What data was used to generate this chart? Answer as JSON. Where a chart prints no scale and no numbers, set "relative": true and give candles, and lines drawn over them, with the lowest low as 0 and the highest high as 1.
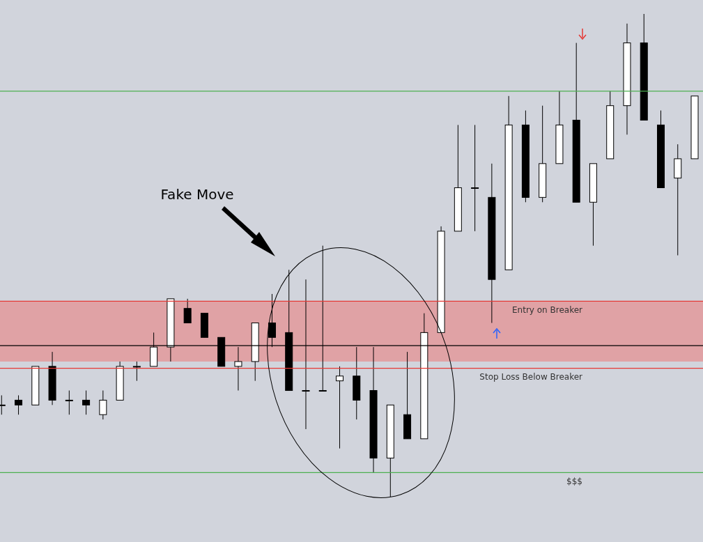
{
  "chart_data": {
    "type": "candlestick",
    "relative": true,
    "categories": [
      null,
      null,
      null,
      null,
      null,
      null,
      null,
      null,
      null,
      null,
      null,
      null,
      null,
      null,
      null,
      null,
      null,
      null,
      null,
      null,
      null,
      null,
      null,
      null,
      null,
      null,
      null,
      null,
      null,
      null,
      null,
      null,
      null,
      null,
      null,
      null,
      null,
      null,
      null,
      null,
      null,
      null
    ],
    "ohlc": [
      [
        0.19,
        0.21,
        0.17,
        0.19
      ],
      [
        0.2,
        0.21,
        0.17,
        0.19
      ],
      [
        0.19,
        0.27,
        0.19,
        0.27
      ],
      [
        0.27,
        0.3,
        0.19,
        0.2
      ],
      [
        0.2,
        0.22,
        0.17,
        0.2
      ],
      [
        0.2,
        0.22,
        0.17,
        0.19
      ],
      [
        0.17,
        0.22,
        0.16,
        0.2
      ],
      [
        0.2,
        0.28,
        0.2,
        0.27
      ],
      [
        0.27,
        0.28,
        0.24,
        0.27
      ],
      [
        0.27,
        0.34,
        0.27,
        0.31
      ],
      [
        0.31,
        0.41,
        0.28,
        0.41
      ],
      [
        0.39,
        0.41,
        0.36,
        0.36
      ],
      [
        0.38,
        0.38,
        0.33,
        0.33
      ],
      [
        0.33,
        0.33,
        0.27,
        0.27
      ],
      [
        0.27,
        0.31,
        0.22,
        0.28
      ],
      [
        0.28,
        0.36,
        0.24,
        0.36
      ],
      [
        0.36,
        0.42,
        0.31,
        0.33
      ],
      [
        0.34,
        0.47,
        0.22,
        0.22
      ],
      [
        0.22,
        0.45,
        0.14,
        0.22
      ],
      [
        0.22,
        0.52,
        0.22,
        0.22
      ],
      [
        0.24,
        0.27,
        0.1,
        0.25
      ],
      [
        0.25,
        0.31,
        0.16,
        0.2
      ],
      [
        0.22,
        0.31,
        0.05,
        0.08
      ],
      [
        0.08,
        0.19,
        0,
        0.19
      ],
      [
        0.17,
        0.3,
        0.12,
        0.12
      ],
      [
        0.12,
        0.38,
        0.12,
        0.34
      ],
      [
        0.34,
        0.56,
        0.34,
        0.55
      ],
      [
        0.55,
        0.77,
        0.55,
        0.64
      ],
      [
        0.64,
        0.77,
        0.55,
        0.64
      ],
      [
        0.62,
        0.69,
        0.36,
        0.45
      ],
      [
        0.47,
        0.83,
        0.47,
        0.77
      ],
      [
        0.77,
        0.8,
        0.61,
        0.62
      ],
      [
        0.62,
        0.81,
        0.61,
        0.69
      ],
      [
        0.69,
        0.84,
        0.69,
        0.77
      ],
      [
        0.78,
        0.94,
        0.61,
        0.61
      ],
      [
        0.61,
        0.69,
        0.52,
        0.69
      ],
      [
        0.7,
        0.84,
        0.7,
        0.81
      ],
      [
        0.81,
        0.98,
        0.75,
        0.94
      ],
      [
        0.94,
        1,
        0.78,
        0.78
      ],
      [
        0.77,
        0.8,
        0.64,
        0.64
      ],
      [
        0.66,
        0.73,
        0.5,
        0.7
      ],
      [
        0.7,
        0.83,
        0.7,
        0.83
      ]
    ],
    "ref_lines": [
      {
        "axis": "y",
        "value": 0.84,
        "label": null,
        "color": "#4caf50"
      },
      {
        "axis": "y",
        "value": 0.05,
        "label": "$$$",
        "color": "#4caf50"
      },
      {
        "axis": "y",
        "value": 0.405,
        "label": "Entry on Breaker",
        "color": "#e53935"
      },
      {
        "axis": "y",
        "value": 0.266,
        "label": "Stop Loss Below Breaker",
        "color": "#e53935"
      },
      {
        "axis": "y",
        "value": 0.313,
        "label": null,
        "color": "#000000"
      }
    ],
    "bands": [
      {
        "axis": "y",
        "from": 0.28,
        "to": 0.405,
        "label": null,
        "color": "#e3999b"
      }
    ],
    "annotations": [
      "Fake Move"
    ]
  }
}
